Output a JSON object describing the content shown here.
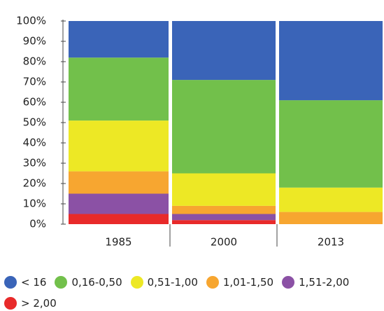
{
  "chart_data": {
    "type": "stacked_bar",
    "categories": [
      "1985",
      "2000",
      "2013"
    ],
    "series": [
      {
        "name": "< 16",
        "color": "#3a64b8",
        "values": [
          18,
          29,
          39
        ]
      },
      {
        "name": "0,16-0,50",
        "color": "#72c04b",
        "values": [
          31,
          46,
          43
        ]
      },
      {
        "name": "0,51-1,00",
        "color": "#ede825",
        "values": [
          25,
          16,
          12
        ]
      },
      {
        "name": "1,01-1,50",
        "color": "#f7a630",
        "values": [
          11,
          4,
          6
        ]
      },
      {
        "name": "1,51-2,00",
        "color": "#8b51a5",
        "values": [
          10,
          3,
          0
        ]
      },
      {
        "name": "> 2,00",
        "color": "#e82a2a",
        "values": [
          5,
          2,
          0
        ]
      }
    ],
    "ylim": [
      0,
      100
    ],
    "yticks": [
      {
        "value": 0,
        "label": "0%"
      },
      {
        "value": 10,
        "label": "10%"
      },
      {
        "value": 20,
        "label": "20%"
      },
      {
        "value": 30,
        "label": "30%"
      },
      {
        "value": 40,
        "label": "40%"
      },
      {
        "value": 50,
        "label": "50%"
      },
      {
        "value": 60,
        "label": "60%"
      },
      {
        "value": 70,
        "label": "70%"
      },
      {
        "value": 80,
        "label": "80%"
      },
      {
        "value": 90,
        "label": "90%"
      },
      {
        "value": 100,
        "label": "100%"
      }
    ]
  }
}
